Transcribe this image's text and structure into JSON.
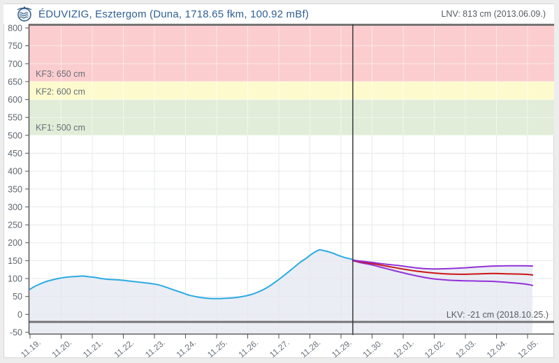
{
  "header": {
    "title": "ÉDUVIZIG, Esztergom (Duna, 1718.65 fkm, 100.92 mBf)",
    "lnv_label": "LNV: 813 cm (2013.06.09.)",
    "logo": "eduvizig-emblem",
    "title_color": "#2e5f94"
  },
  "chart_data": {
    "type": "line",
    "title": "ÉDUVIZIG, Esztergom (Duna, 1718.65 fkm, 100.92 mBf)",
    "ylabel": "cm",
    "ylim": [
      -50,
      812
    ],
    "y_ticks": [
      800,
      750,
      700,
      650,
      600,
      550,
      500,
      450,
      400,
      350,
      300,
      250,
      200,
      150,
      100,
      50,
      0,
      -50
    ],
    "x_categories": [
      "11.19.",
      "11.20.",
      "11.21.",
      "11.22.",
      "11.23.",
      "11.24.",
      "11.25.",
      "11.26.",
      "11.27.",
      "11.28.",
      "11.29.",
      "11.30.",
      "12.01.",
      "12.02.",
      "12.03.",
      "12.04.",
      "12.05."
    ],
    "grid": true,
    "bands": [
      {
        "name": "flood-level-3",
        "label": "KF3: 650 cm",
        "from": 650,
        "to": 812,
        "color": "#fbcdce"
      },
      {
        "name": "flood-level-2",
        "label": "KF2: 600 cm",
        "from": 600,
        "to": 650,
        "color": "#fdfbcd"
      },
      {
        "name": "flood-level-1",
        "label": "KF1: 500 cm",
        "from": 500,
        "to": 600,
        "color": "#e1edd8"
      }
    ],
    "series": [
      {
        "name": "observed-water-level",
        "color": "#29abe2",
        "width": 2,
        "points": [
          [
            0,
            70
          ],
          [
            0.15,
            78
          ],
          [
            0.3,
            84
          ],
          [
            0.5,
            91
          ],
          [
            0.7,
            96
          ],
          [
            0.9,
            100
          ],
          [
            1.1,
            103
          ],
          [
            1.3,
            105
          ],
          [
            1.5,
            106
          ],
          [
            1.7,
            107
          ],
          [
            1.9,
            105
          ],
          [
            2.1,
            103
          ],
          [
            2.3,
            100
          ],
          [
            2.5,
            98
          ],
          [
            2.7,
            97
          ],
          [
            2.9,
            96
          ],
          [
            3.1,
            94
          ],
          [
            3.3,
            92
          ],
          [
            3.5,
            90
          ],
          [
            3.7,
            88
          ],
          [
            3.9,
            86
          ],
          [
            4.1,
            83
          ],
          [
            4.3,
            78
          ],
          [
            4.5,
            72
          ],
          [
            4.7,
            66
          ],
          [
            4.9,
            60
          ],
          [
            5.1,
            54
          ],
          [
            5.3,
            50
          ],
          [
            5.5,
            47
          ],
          [
            5.7,
            45
          ],
          [
            5.9,
            44
          ],
          [
            6.1,
            44
          ],
          [
            6.3,
            45
          ],
          [
            6.5,
            46
          ],
          [
            6.7,
            48
          ],
          [
            6.9,
            51
          ],
          [
            7.1,
            55
          ],
          [
            7.3,
            61
          ],
          [
            7.5,
            69
          ],
          [
            7.7,
            79
          ],
          [
            7.9,
            91
          ],
          [
            8.1,
            104
          ],
          [
            8.3,
            118
          ],
          [
            8.5,
            132
          ],
          [
            8.7,
            146
          ],
          [
            8.9,
            158
          ],
          [
            9.05,
            168
          ],
          [
            9.2,
            176
          ],
          [
            9.3,
            180
          ],
          [
            9.4,
            179
          ],
          [
            9.55,
            176
          ],
          [
            9.7,
            172
          ],
          [
            9.85,
            167
          ],
          [
            10.0,
            162
          ],
          [
            10.15,
            158
          ],
          [
            10.25,
            156
          ],
          [
            10.38,
            153
          ]
        ]
      },
      {
        "name": "forecast-upper",
        "color": "#9331d8",
        "width": 2,
        "points": [
          [
            10.38,
            152
          ],
          [
            10.6,
            149
          ],
          [
            11,
            145
          ],
          [
            11.45,
            140
          ],
          [
            11.9,
            136
          ],
          [
            12.4,
            130
          ],
          [
            12.9,
            127
          ],
          [
            13.4,
            127.5
          ],
          [
            13.9,
            129.5
          ],
          [
            14.4,
            132.5
          ],
          [
            14.9,
            135
          ],
          [
            15.4,
            135.5
          ],
          [
            15.9,
            135.5
          ],
          [
            16.16,
            135
          ]
        ]
      },
      {
        "name": "forecast-median",
        "color": "#cc1414",
        "width": 2,
        "points": [
          [
            10.38,
            151
          ],
          [
            10.6,
            147
          ],
          [
            11,
            142
          ],
          [
            11.45,
            135
          ],
          [
            11.9,
            128
          ],
          [
            12.4,
            121
          ],
          [
            12.9,
            116
          ],
          [
            13.4,
            113
          ],
          [
            13.9,
            112
          ],
          [
            14.4,
            113
          ],
          [
            14.9,
            114
          ],
          [
            15.4,
            113
          ],
          [
            15.9,
            112
          ],
          [
            16.16,
            110
          ]
        ]
      },
      {
        "name": "forecast-lower",
        "color": "#9331d8",
        "width": 2,
        "points": [
          [
            10.38,
            150
          ],
          [
            10.6,
            145
          ],
          [
            11,
            138
          ],
          [
            11.45,
            128
          ],
          [
            11.9,
            118
          ],
          [
            12.4,
            108
          ],
          [
            12.9,
            100
          ],
          [
            13.4,
            96
          ],
          [
            13.9,
            94
          ],
          [
            14.4,
            93
          ],
          [
            14.9,
            92
          ],
          [
            15.4,
            89
          ],
          [
            15.9,
            85
          ],
          [
            16.16,
            81
          ]
        ]
      }
    ],
    "area_fill_color": "#eaedf4",
    "now_line": {
      "day": 10.38,
      "color": "#3a3a3a"
    },
    "annotations": {
      "lnv": {
        "text": "LNV: 813 cm (2013.06.09.)",
        "value": 813,
        "color": "#757575"
      },
      "lkv": {
        "text": "LKV: -21 cm (2018.10.25.)",
        "value": -21,
        "color": "#757575"
      }
    },
    "axis_color": "#555555",
    "label_color": "#6a737d",
    "gridline_color": "#e6e8eb",
    "gridline_color_on_bands": "rgba(255,255,255,0.55)"
  }
}
